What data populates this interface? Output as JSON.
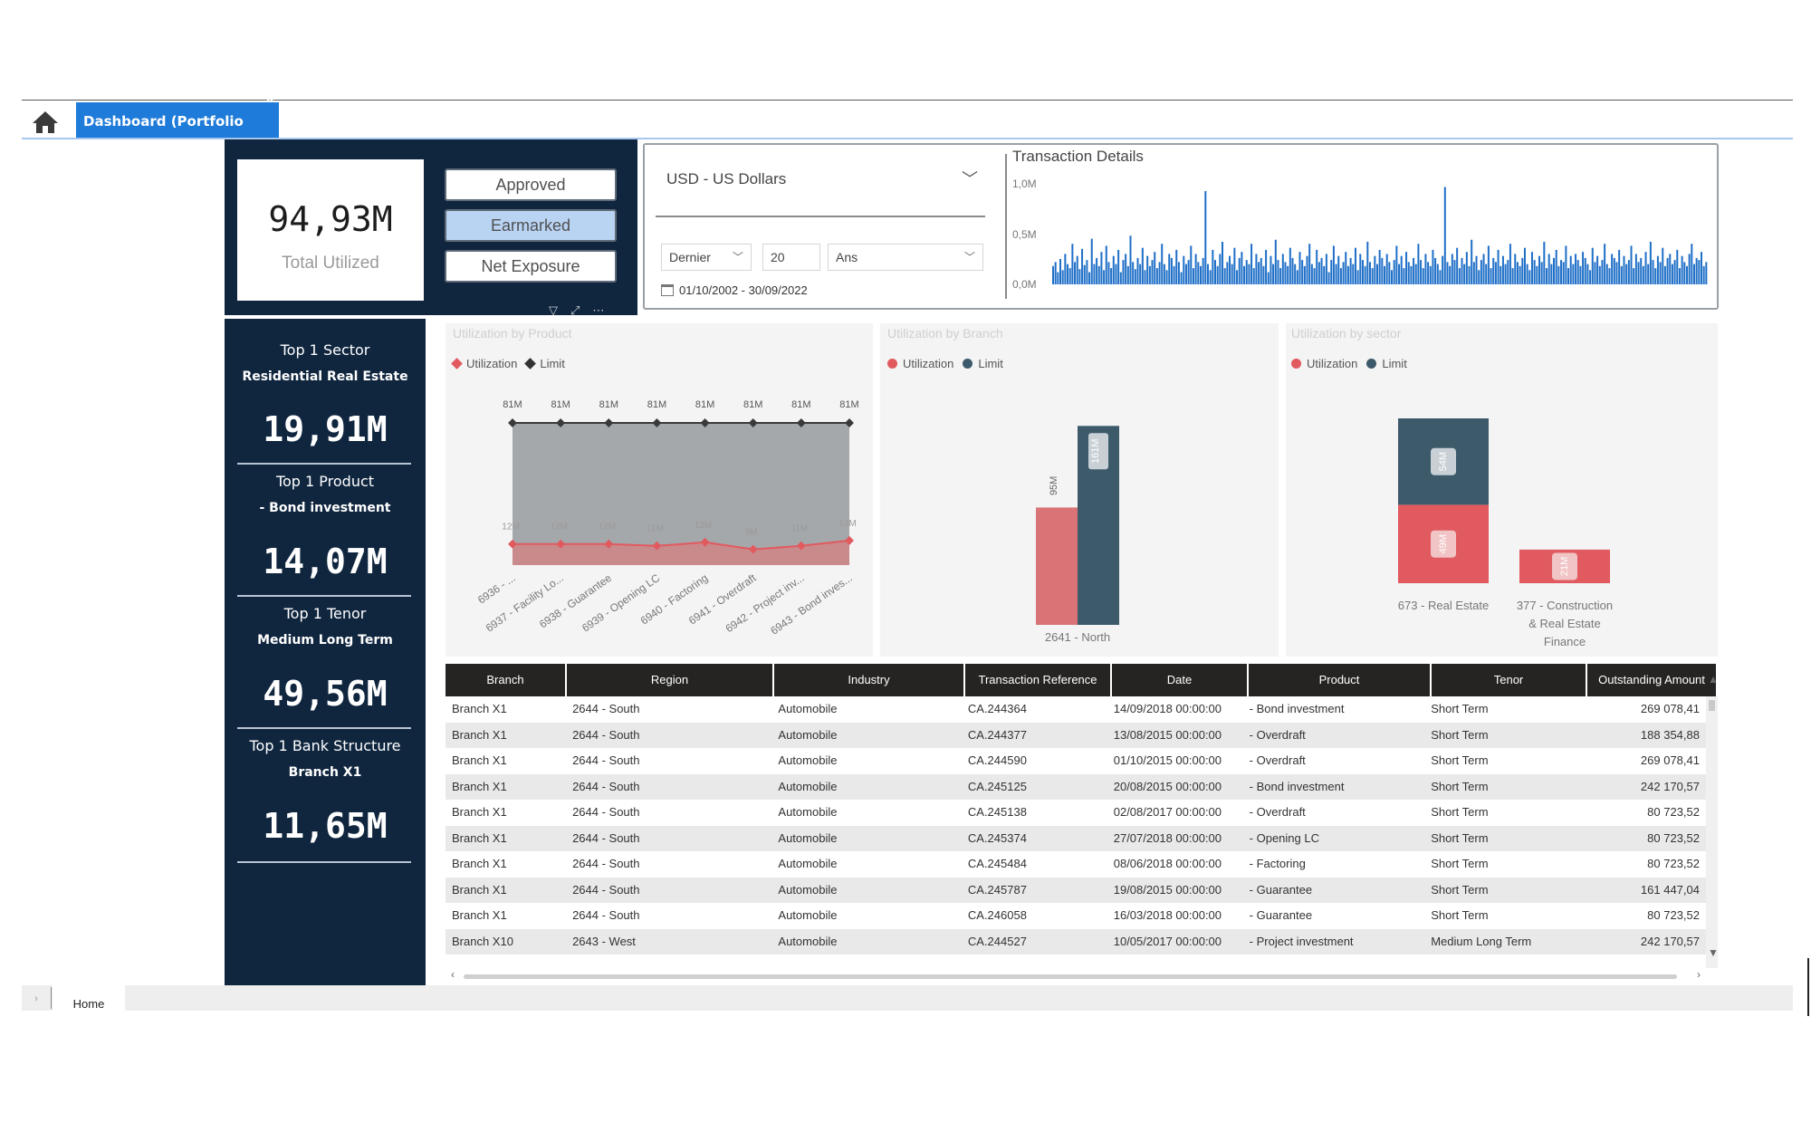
{
  "tabbar": {
    "home_icon": "home-icon",
    "tab_label": "Dashboard (Portfolio Mgt)",
    "close_glyph": "×"
  },
  "total": {
    "value": "94,93M",
    "label": "Total Utilized"
  },
  "view_buttons": [
    {
      "label": "Approved",
      "active": false
    },
    {
      "label": "Earmarked",
      "active": true
    },
    {
      "label": "Net Exposure",
      "active": false
    }
  ],
  "visual_icons": [
    "filter-icon",
    "focus-mode-icon",
    "more-options-icon"
  ],
  "kpis": [
    {
      "title": "Top 1 Sector",
      "sub": "Residential Real Estate",
      "value": "19,91M"
    },
    {
      "title": "Top 1 Product",
      "sub": "- Bond investment",
      "value": "14,07M"
    },
    {
      "title": "Top 1 Tenor",
      "sub": "Medium Long Term",
      "value": "49,56M"
    },
    {
      "title": "Top 1 Bank Structure",
      "sub": "Branch X1",
      "value": "11,65M"
    }
  ],
  "filters": {
    "currency": "USD - US Dollars",
    "relative": "Dernier",
    "count": "20",
    "unit": "Ans",
    "date_range": "01/10/2002 - 30/09/2022"
  },
  "transaction_details": {
    "title": "Transaction Details",
    "y_ticks": [
      "1,0M",
      "0,5M",
      "0,0M"
    ]
  },
  "colors": {
    "utilization": "#e05a5f",
    "limit": "#3d5a6b",
    "product_limit": "#3a3a3a",
    "navy": "#10263f",
    "accent": "#1e7bd9",
    "bar_blue": "#1f6fc7"
  },
  "product_chart": {
    "title": "Utilization by Product",
    "legend": [
      "Utilization",
      "Limit"
    ]
  },
  "branch_chart": {
    "title": "Utilization by Branch",
    "legend": [
      "Utilization",
      "Limit"
    ]
  },
  "sector_chart": {
    "title": "Utilization by sector",
    "legend": [
      "Utilization",
      "Limit"
    ]
  },
  "chart_data": [
    {
      "type": "area",
      "title": "Utilization by Product",
      "categories": [
        "6936 - ...",
        "6937 - Facility Lo...",
        "6938 - Guarantee",
        "6939 - Opening LC",
        "6940 - Factoring",
        "6941 - Overdraft",
        "6942 - Project inv...",
        "6943 - Bond inves..."
      ],
      "series": [
        {
          "name": "Utilization",
          "values": [
            12,
            12,
            12,
            11,
            13,
            9,
            11,
            14
          ],
          "labels": [
            "12M",
            "12M",
            "12M",
            "11M",
            "13M",
            "9M",
            "11M",
            "14M"
          ]
        },
        {
          "name": "Limit",
          "values": [
            81,
            81,
            81,
            81,
            81,
            81,
            81,
            81
          ],
          "labels": [
            "81M",
            "81M",
            "81M",
            "81M",
            "81M",
            "81M",
            "81M",
            "81M"
          ]
        }
      ],
      "ylim": [
        0,
        90
      ],
      "legend": "top-left",
      "grid": false
    },
    {
      "type": "bar",
      "title": "Utilization by Branch",
      "categories": [
        "2641 - North"
      ],
      "series": [
        {
          "name": "Utilization",
          "values": [
            95
          ],
          "labels": [
            "95M"
          ]
        },
        {
          "name": "Limit",
          "values": [
            161
          ],
          "labels": [
            "161M"
          ]
        }
      ],
      "ylim": [
        0,
        170
      ],
      "legend": "top-left",
      "grid": false
    },
    {
      "type": "bar",
      "title": "Utilization by sector",
      "stacked": true,
      "categories": [
        "673 - Real Estate",
        "377 - Construction & Real Estate Finance"
      ],
      "category_lines": [
        [
          "673 - Real Estate"
        ],
        [
          "377 - Construction",
          "& Real Estate",
          "Finance"
        ]
      ],
      "series": [
        {
          "name": "Utilization",
          "values": [
            49,
            21
          ],
          "labels": [
            "49M",
            "21M"
          ]
        },
        {
          "name": "Limit",
          "values": [
            54,
            0
          ],
          "labels": [
            "54M",
            ""
          ]
        }
      ],
      "ylim": [
        0,
        110
      ],
      "legend": "top-left",
      "grid": false
    },
    {
      "type": "bar",
      "title": "Transaction Details",
      "y_ticks": [
        "0,0M",
        "0,5M",
        "1,0M"
      ],
      "ylim": [
        0,
        1.0
      ],
      "values": [
        0.18,
        0.22,
        0.12,
        0.25,
        0.14,
        0.3,
        0.2,
        0.16,
        0.4,
        0.22,
        0.28,
        0.15,
        0.35,
        0.19,
        0.24,
        0.12,
        0.45,
        0.2,
        0.26,
        0.18,
        0.32,
        0.14,
        0.38,
        0.22,
        0.16,
        0.28,
        0.2,
        0.34,
        0.12,
        0.24,
        0.3,
        0.18,
        0.48,
        0.22,
        0.15,
        0.26,
        0.2,
        0.36,
        0.14,
        0.28,
        0.18,
        0.24,
        0.32,
        0.16,
        0.22,
        0.4,
        0.2,
        0.14,
        0.3,
        0.26,
        0.18,
        0.34,
        0.22,
        0.12,
        0.28,
        0.2,
        0.24,
        0.38,
        0.16,
        0.3,
        0.22,
        0.18,
        0.26,
        0.92,
        0.2,
        0.14,
        0.34,
        0.24,
        0.18,
        0.3,
        0.42,
        0.16,
        0.22,
        0.28,
        0.2,
        0.36,
        0.14,
        0.26,
        0.32,
        0.18,
        0.24,
        0.2,
        0.4,
        0.16,
        0.3,
        0.22,
        0.26,
        0.18,
        0.34,
        0.12,
        0.28,
        0.2,
        0.44,
        0.24,
        0.16,
        0.3,
        0.22,
        0.18,
        0.36,
        0.26,
        0.2,
        0.14,
        0.32,
        0.24,
        0.18,
        0.28,
        0.4,
        0.2,
        0.16,
        0.34,
        0.22,
        0.26,
        0.18,
        0.3,
        0.12,
        0.24,
        0.38,
        0.2,
        0.28,
        0.16,
        0.22,
        0.32,
        0.18,
        0.26,
        0.2,
        0.36,
        0.14,
        0.3,
        0.24,
        0.18,
        0.42,
        0.22,
        0.16,
        0.28,
        0.2,
        0.34,
        0.26,
        0.18,
        0.3,
        0.22,
        0.14,
        0.24,
        0.38,
        0.2,
        0.28,
        0.16,
        0.32,
        0.22,
        0.18,
        0.26,
        0.2,
        0.4,
        0.24,
        0.16,
        0.3,
        0.22,
        0.18,
        0.34,
        0.26,
        0.2,
        0.14,
        0.28,
        0.96,
        0.22,
        0.18,
        0.3,
        0.24,
        0.36,
        0.16,
        0.26,
        0.2,
        0.32,
        0.18,
        0.44,
        0.22,
        0.28,
        0.14,
        0.24,
        0.3,
        0.2,
        0.38,
        0.16,
        0.26,
        0.22,
        0.34,
        0.18,
        0.28,
        0.2,
        0.24,
        0.4,
        0.16,
        0.3,
        0.22,
        0.18,
        0.26,
        0.36,
        0.2,
        0.14,
        0.32,
        0.24,
        0.18,
        0.28,
        0.22,
        0.42,
        0.16,
        0.3,
        0.2,
        0.26,
        0.34,
        0.18,
        0.24,
        0.22,
        0.38,
        0.16,
        0.28,
        0.2,
        0.3,
        0.24,
        0.18,
        0.32,
        0.26,
        0.2,
        0.14,
        0.36,
        0.22,
        0.28,
        0.18,
        0.24,
        0.4,
        0.2,
        0.16,
        0.3,
        0.26,
        0.22,
        0.34,
        0.18,
        0.28,
        0.2,
        0.24,
        0.38,
        0.16,
        0.3,
        0.22,
        0.26,
        0.18,
        0.32,
        0.2,
        0.42,
        0.24,
        0.16,
        0.28,
        0.22,
        0.36,
        0.18,
        0.26,
        0.3,
        0.2,
        0.24,
        0.34,
        0.16,
        0.28,
        0.22,
        0.18,
        0.3,
        0.4,
        0.2,
        0.26,
        0.24,
        0.32,
        0.18,
        0.22
      ]
    }
  ],
  "table": {
    "columns": [
      "Branch",
      "Region",
      "Industry",
      "Transaction Reference",
      "Date",
      "Product",
      "Tenor",
      "Outstanding Amount"
    ],
    "rows": [
      [
        "Branch X1",
        "2644 - South",
        "Automobile",
        "CA.244364",
        "14/09/2018 00:00:00",
        "- Bond investment",
        "Short Term",
        "269 078,41"
      ],
      [
        "Branch X1",
        "2644 - South",
        "Automobile",
        "CA.244377",
        "13/08/2015 00:00:00",
        "- Overdraft",
        "Short Term",
        "188 354,88"
      ],
      [
        "Branch X1",
        "2644 - South",
        "Automobile",
        "CA.244590",
        "01/10/2015 00:00:00",
        "- Overdraft",
        "Short Term",
        "269 078,41"
      ],
      [
        "Branch X1",
        "2644 - South",
        "Automobile",
        "CA.245125",
        "20/08/2015 00:00:00",
        "- Bond investment",
        "Short Term",
        "242 170,57"
      ],
      [
        "Branch X1",
        "2644 - South",
        "Automobile",
        "CA.245138",
        "02/08/2017 00:00:00",
        "- Overdraft",
        "Short Term",
        "80 723,52"
      ],
      [
        "Branch X1",
        "2644 - South",
        "Automobile",
        "CA.245374",
        "27/07/2018 00:00:00",
        "- Opening LC",
        "Short Term",
        "80 723,52"
      ],
      [
        "Branch X1",
        "2644 - South",
        "Automobile",
        "CA.245484",
        "08/06/2018 00:00:00",
        "- Factoring",
        "Short Term",
        "80 723,52"
      ],
      [
        "Branch X1",
        "2644 - South",
        "Automobile",
        "CA.245787",
        "19/08/2015 00:00:00",
        "- Guarantee",
        "Short Term",
        "161 447,04"
      ],
      [
        "Branch X1",
        "2644 - South",
        "Automobile",
        "CA.246058",
        "16/03/2018 00:00:00",
        "- Guarantee",
        "Short Term",
        "80 723,52"
      ],
      [
        "Branch X10",
        "2643 - West",
        "Automobile",
        "CA.244527",
        "10/05/2017 00:00:00",
        "- Project investment",
        "Medium Long Term",
        "242 170,57"
      ]
    ]
  },
  "bottom": {
    "page_tab": "Home",
    "nav_icon": "page-nav-icon"
  }
}
